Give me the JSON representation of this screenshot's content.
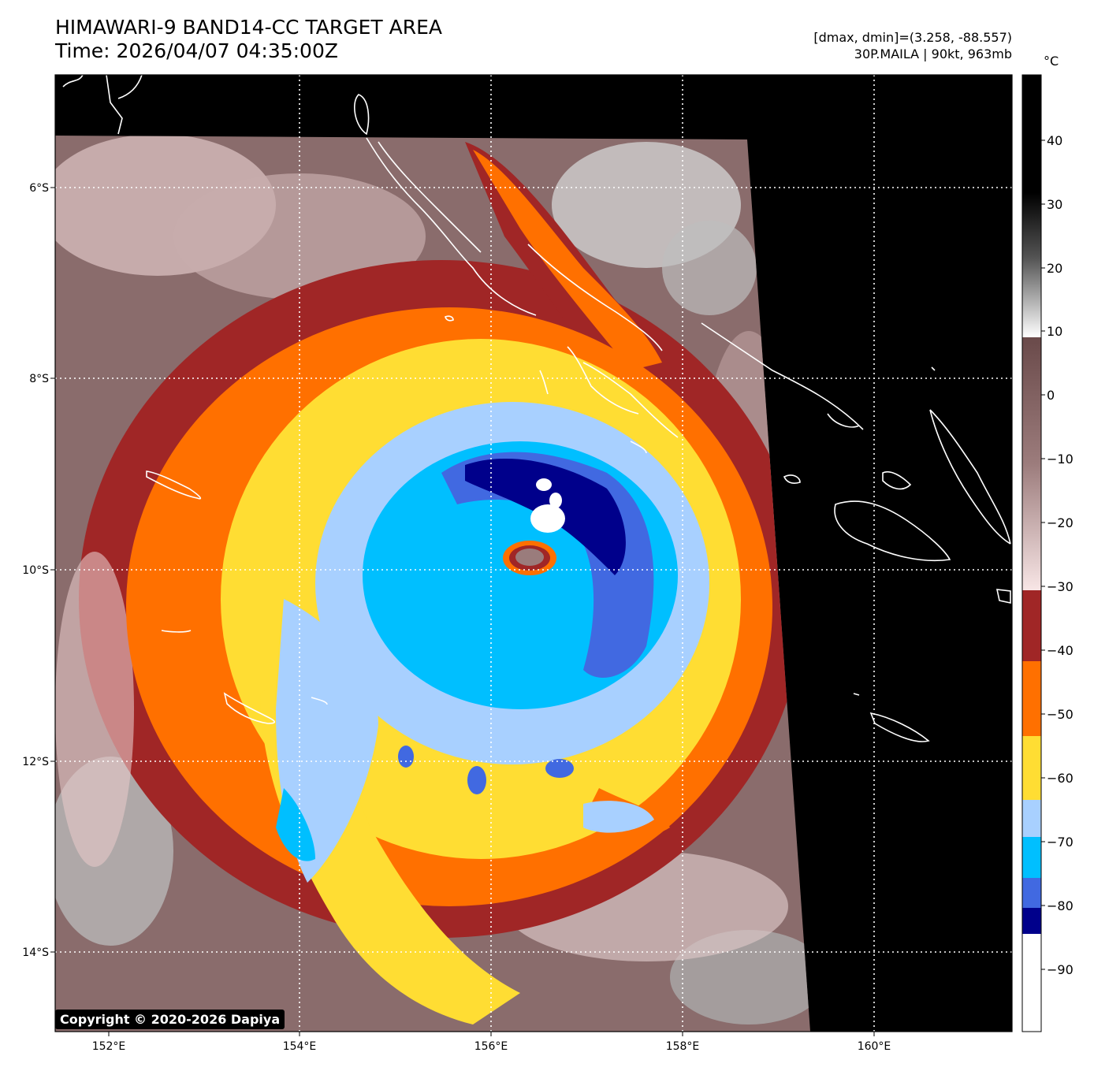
{
  "header": {
    "title_line1": "HIMAWARI-9 BAND14-CC TARGET AREA",
    "title_line2": "Time: 2026/04/07 04:35:00Z",
    "meta_line1": "[dmax, dmin]=(3.258, -88.557)",
    "meta_line2": "30P.MAILA | 90kt, 963mb"
  },
  "map": {
    "lat_labels": [
      "6°S",
      "8°S",
      "10°S",
      "12°S",
      "14°S"
    ],
    "lon_labels": [
      "152°E",
      "154°E",
      "156°E",
      "158°E",
      "160°E"
    ]
  },
  "colorbar": {
    "unit": "°C",
    "tick_labels": [
      "40",
      "30",
      "20",
      "10",
      "0",
      "−10",
      "−20",
      "−30",
      "−40",
      "−50",
      "−60",
      "−70",
      "−80",
      "−90"
    ],
    "colors": {
      "black": "#000000",
      "gray_light": "#d8d8d8",
      "brown": "#7c5a5a",
      "pink": "#f4d4d4",
      "dark_red": "#a02626",
      "orange": "#ff7000",
      "yellow": "#ffdd33",
      "light_blue": "#a8d0ff",
      "cyan": "#00bfff",
      "royal_blue": "#4169e1",
      "navy": "#00008b",
      "white": "#ffffff"
    }
  },
  "footer": {
    "copyright": "Copyright © 2020-2026 Dapiya"
  }
}
